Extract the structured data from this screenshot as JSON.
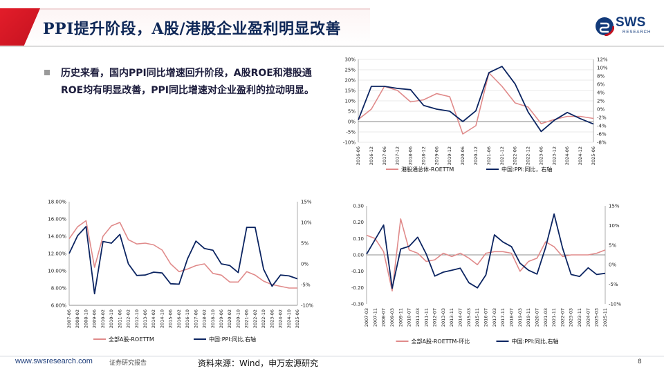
{
  "header": {
    "title": "PPI提升阶段，A股/港股企业盈利明显改善"
  },
  "logo": {
    "name": "SWS",
    "subtitle": "RESEARCH"
  },
  "bullet": {
    "text": "历史来看，国内PPI同比增速回升阶段，A股ROE和港股通ROE均有明显改善，PPI同比增速对企业盈利的拉动明显。"
  },
  "footer": {
    "url": "www.swsresearch.com",
    "tag": "证券研究报告",
    "source": "资料来源：Wind，申万宏源研究",
    "page": "8"
  },
  "colors": {
    "ppi": "#0b2461",
    "roe": "#e08a8a",
    "grid": "#d6d6d6",
    "brand": "#c4121f"
  },
  "chart_data": [
    {
      "type": "line",
      "x": [
        "2016-06",
        "2016-12",
        "2017-06",
        "2017-12",
        "2018-06",
        "2018-12",
        "2019-06",
        "2019-12",
        "2020-06",
        "2020-12",
        "2021-06",
        "2021-12",
        "2022-06",
        "2022-12",
        "2023-06",
        "2023-12",
        "2024-06",
        "2024-12",
        "2025-06"
      ],
      "series": [
        {
          "name": "港股通总体-ROETTM",
          "axis": "left",
          "color": "#e08a8a",
          "values": [
            0.01,
            0.06,
            0.17,
            0.15,
            0.095,
            0.105,
            0.135,
            0.12,
            -0.06,
            -0.02,
            0.235,
            0.17,
            0.09,
            0.07,
            -0.01,
            0.01,
            0.025,
            0.025,
            0.015
          ]
        },
        {
          "name": "中国:PPI:同比，右轴",
          "axis": "right",
          "color": "#0b2461",
          "values": [
            -2.6,
            5.5,
            5.5,
            5.0,
            4.7,
            0.9,
            0.0,
            -0.5,
            -3.0,
            -0.4,
            8.8,
            10.3,
            6.1,
            -0.7,
            -5.4,
            -2.7,
            -0.8,
            -2.3,
            -3.6
          ]
        }
      ],
      "ylim_left": [
        -0.1,
        0.3
      ],
      "yticks_left": [
        "-10%",
        "-5%",
        "0%",
        "5%",
        "10%",
        "15%",
        "20%",
        "25%",
        "30%"
      ],
      "ylim_right": [
        -8,
        12
      ],
      "yticks_right": [
        "-8%",
        "-6%",
        "-4%",
        "-2%",
        "0%",
        "2%",
        "4%",
        "6%",
        "8%",
        "10%",
        "12%"
      ],
      "legend": [
        "港股通总体-ROETTM",
        "中国:PPI:同比，右轴"
      ],
      "legend_position": "bottom"
    },
    {
      "type": "line",
      "x": [
        "2007-06",
        "2008-02",
        "2008-10",
        "2009-06",
        "2010-02",
        "2010-10",
        "2011-06",
        "2012-02",
        "2012-10",
        "2013-06",
        "2014-02",
        "2014-10",
        "2015-06",
        "2016-02",
        "2016-10",
        "2017-06",
        "2018-02",
        "2018-10",
        "2019-06",
        "2020-02",
        "2020-10",
        "2021-06",
        "2022-02",
        "2022-10",
        "2023-06",
        "2024-02",
        "2024-10",
        "2025-06"
      ],
      "series": [
        {
          "name": "全部A股-ROETTM",
          "axis": "left",
          "color": "#e08a8a",
          "values": [
            0.137,
            0.151,
            0.158,
            0.104,
            0.14,
            0.152,
            0.156,
            0.136,
            0.131,
            0.132,
            0.13,
            0.124,
            0.108,
            0.099,
            0.102,
            0.106,
            0.108,
            0.097,
            0.095,
            0.087,
            0.087,
            0.099,
            0.095,
            0.088,
            0.084,
            0.082,
            0.08,
            0.08
          ]
        },
        {
          "name": "中国:PPI:同比,右轴",
          "axis": "right",
          "color": "#0b2461",
          "values": [
            2.5,
            6.8,
            9.0,
            -7.2,
            5.4,
            5.0,
            7.1,
            0.0,
            -2.8,
            -2.7,
            -2.0,
            -2.2,
            -4.8,
            -4.9,
            1.2,
            5.5,
            3.7,
            3.3,
            0.0,
            -0.4,
            -2.1,
            8.8,
            8.8,
            -1.3,
            -5.4,
            -2.7,
            -2.9,
            -3.6
          ]
        }
      ],
      "ylim_left": [
        0.06,
        0.18
      ],
      "yticks_left": [
        "6.00%",
        "8.00%",
        "10.00%",
        "12.00%",
        "14.00%",
        "16.00%",
        "18.00%"
      ],
      "ylim_right": [
        -10,
        15
      ],
      "yticks_right": [
        "-10%",
        "-5%",
        "0%",
        "5%",
        "10%",
        "15%"
      ],
      "legend": [
        "全部A股-ROETTM",
        "中国:PPI:同比,右轴"
      ],
      "legend_position": "bottom"
    },
    {
      "type": "line",
      "x": [
        "2007-03",
        "2007-11",
        "2008-07",
        "2009-03",
        "2009-11",
        "2010-07",
        "2011-03",
        "2011-11",
        "2012-07",
        "2013-03",
        "2013-11",
        "2014-07",
        "2015-03",
        "2015-11",
        "2016-07",
        "2017-03",
        "2017-11",
        "2018-07",
        "2019-03",
        "2019-11",
        "2020-07",
        "2021-03",
        "2021-11",
        "2022-07",
        "2023-03",
        "2023-11",
        "2024-07",
        "2025-03",
        "2025-11"
      ],
      "series": [
        {
          "name": "全部A股-ROETTM-环比",
          "axis": "left",
          "color": "#e08a8a",
          "values": [
            0.12,
            0.1,
            0.02,
            -0.22,
            0.22,
            0.03,
            0.01,
            -0.04,
            -0.03,
            0.01,
            -0.01,
            0.01,
            -0.02,
            -0.06,
            0.01,
            0.02,
            0.02,
            0.01,
            -0.1,
            -0.04,
            -0.02,
            0.08,
            0.05,
            -0.01,
            0.0,
            0.0,
            0.0,
            0.01,
            0.03
          ]
        },
        {
          "name": "中国:PPI:同比,右轴",
          "axis": "right",
          "color": "#0b2461",
          "values": [
            2.7,
            6.4,
            10.1,
            -6.0,
            4.0,
            4.7,
            7.0,
            2.7,
            -2.9,
            -1.9,
            -1.4,
            -0.9,
            -4.6,
            -5.9,
            -2.6,
            7.6,
            5.8,
            4.6,
            0.4,
            -1.4,
            -2.4,
            4.4,
            12.9,
            4.2,
            -2.5,
            -3.0,
            -0.8,
            -2.5,
            -2.2
          ]
        }
      ],
      "ylim_left": [
        -0.3,
        0.3
      ],
      "yticks_left": [
        "-0.30",
        "-0.20",
        "-0.10",
        "0.00",
        "0.10",
        "0.20",
        "0.30"
      ],
      "ylim_right": [
        -10,
        15
      ],
      "yticks_right": [
        "-10%",
        "-5%",
        "0%",
        "5%",
        "10%",
        "15%"
      ],
      "legend": [
        "全部A股-ROETTM-环比",
        "中国:PPI:同比,右轴"
      ],
      "legend_position": "bottom"
    }
  ]
}
